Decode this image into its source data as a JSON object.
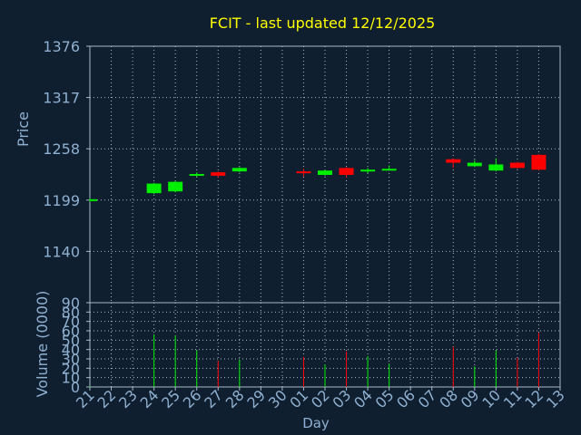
{
  "title": "FCIT - last updated 12/12/2025",
  "colors": {
    "background": "#0f1f30",
    "title": "#ffff00",
    "text": "#8fb0d0",
    "axes": "#a8b8c8",
    "grid": "#a8b8c8",
    "up": "#00ee00",
    "down": "#ff0000"
  },
  "chart_data": [
    {
      "type": "candlestick",
      "ylabel": "Price",
      "ylim": [
        1081,
        1376
      ],
      "yticks": [
        1140,
        1199,
        1258,
        1317,
        1376
      ],
      "grid": true,
      "x": [
        "21",
        "22",
        "23",
        "24",
        "25",
        "26",
        "27",
        "28",
        "29",
        "30",
        "01",
        "02",
        "03",
        "04",
        "05",
        "06",
        "07",
        "08",
        "09",
        "10",
        "11",
        "12",
        "13"
      ],
      "candles": [
        {
          "day": "21",
          "open": 1198,
          "close": 1200,
          "high": 1201,
          "low": 1197
        },
        {
          "day": "24",
          "open": 1207,
          "close": 1218,
          "high": 1219,
          "low": 1206
        },
        {
          "day": "25",
          "open": 1209,
          "close": 1220,
          "high": 1221,
          "low": 1208
        },
        {
          "day": "26",
          "open": 1227,
          "close": 1229,
          "high": 1231,
          "low": 1226
        },
        {
          "day": "27",
          "open": 1231,
          "close": 1227,
          "high": 1232,
          "low": 1225
        },
        {
          "day": "28",
          "open": 1232,
          "close": 1236,
          "high": 1237,
          "low": 1231
        },
        {
          "day": "01",
          "open": 1232,
          "close": 1230,
          "high": 1235,
          "low": 1226
        },
        {
          "day": "02",
          "open": 1228,
          "close": 1233,
          "high": 1234,
          "low": 1227
        },
        {
          "day": "03",
          "open": 1236,
          "close": 1228,
          "high": 1237,
          "low": 1225
        },
        {
          "day": "04",
          "open": 1233,
          "close": 1234,
          "high": 1236,
          "low": 1230
        },
        {
          "day": "05",
          "open": 1234,
          "close": 1235,
          "high": 1239,
          "low": 1233
        },
        {
          "day": "08",
          "open": 1246,
          "close": 1242,
          "high": 1247,
          "low": 1236
        },
        {
          "day": "09",
          "open": 1238,
          "close": 1242,
          "high": 1245,
          "low": 1237
        },
        {
          "day": "10",
          "open": 1233,
          "close": 1240,
          "high": 1247,
          "low": 1232
        },
        {
          "day": "11",
          "open": 1242,
          "close": 1236,
          "high": 1243,
          "low": 1235
        },
        {
          "day": "12",
          "open": 1251,
          "close": 1234,
          "high": 1252,
          "low": 1233
        }
      ]
    },
    {
      "type": "bar",
      "xlabel": "Day",
      "ylabel": "Volume (0000)",
      "ylim": [
        0,
        90
      ],
      "yticks": [
        0,
        10,
        20,
        30,
        40,
        50,
        60,
        70,
        80,
        90
      ],
      "grid": true,
      "x": [
        "21",
        "22",
        "23",
        "24",
        "25",
        "26",
        "27",
        "28",
        "29",
        "30",
        "01",
        "02",
        "03",
        "04",
        "05",
        "06",
        "07",
        "08",
        "09",
        "10",
        "11",
        "12",
        "13"
      ],
      "bars": [
        {
          "day": "21",
          "value": 1,
          "up": true
        },
        {
          "day": "24",
          "value": 56,
          "up": true
        },
        {
          "day": "25",
          "value": 55,
          "up": true
        },
        {
          "day": "26",
          "value": 39,
          "up": true
        },
        {
          "day": "27",
          "value": 28,
          "up": false
        },
        {
          "day": "28",
          "value": 29,
          "up": true
        },
        {
          "day": "01",
          "value": 32,
          "up": false
        },
        {
          "day": "02",
          "value": 24,
          "up": true
        },
        {
          "day": "03",
          "value": 38,
          "up": false
        },
        {
          "day": "04",
          "value": 33,
          "up": true
        },
        {
          "day": "05",
          "value": 25,
          "up": true
        },
        {
          "day": "08",
          "value": 43,
          "up": false
        },
        {
          "day": "09",
          "value": 22,
          "up": true
        },
        {
          "day": "10",
          "value": 39,
          "up": true
        },
        {
          "day": "11",
          "value": 31,
          "up": false
        },
        {
          "day": "12",
          "value": 58,
          "up": false
        }
      ]
    }
  ]
}
